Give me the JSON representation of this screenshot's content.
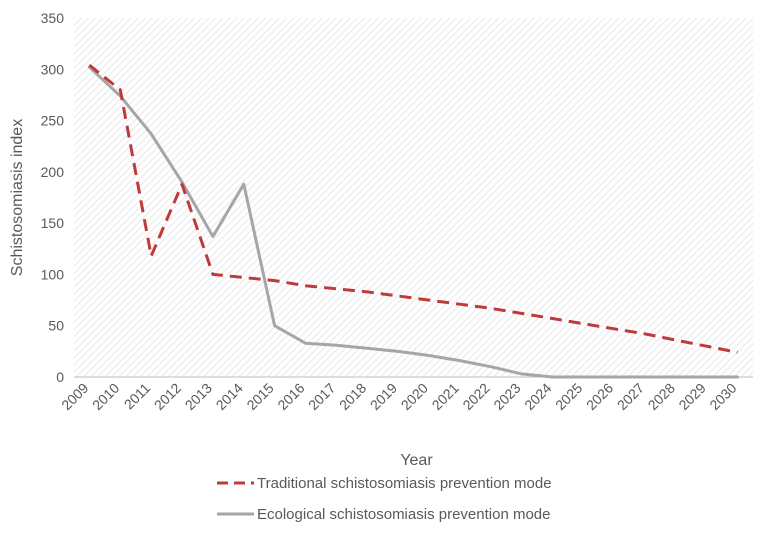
{
  "chart_data": {
    "type": "line",
    "xlabel": "Year",
    "ylabel": "Schistosomiasis index",
    "ylim": [
      0,
      350
    ],
    "yticks": [
      0,
      50,
      100,
      150,
      200,
      250,
      300,
      350
    ],
    "categories": [
      "2009",
      "2010",
      "2011",
      "2012",
      "2013",
      "2014",
      "2015",
      "2016",
      "2017",
      "2018",
      "2019",
      "2020",
      "2021",
      "2022",
      "2023",
      "2024",
      "2025",
      "2026",
      "2027",
      "2028",
      "2029",
      "2030"
    ],
    "grid": "hatched plot background",
    "legend_position": "bottom",
    "series": [
      {
        "name": "Traditional schistosomiasis prevention mode",
        "style": "dashed",
        "color": "#C0393B",
        "values": [
          304,
          280,
          118,
          188,
          100,
          97,
          94,
          89,
          86,
          83,
          79,
          75,
          71,
          67,
          62,
          57,
          52,
          47,
          42,
          36,
          30,
          24
        ]
      },
      {
        "name": "Ecological schistosomiasis prevention mode",
        "style": "solid",
        "color": "#A6A6A6",
        "values": [
          302,
          274,
          237,
          190,
          137,
          188,
          50,
          33,
          31,
          28,
          25,
          21,
          16,
          10,
          3,
          0,
          0,
          0,
          0,
          0,
          0,
          0
        ]
      }
    ]
  }
}
